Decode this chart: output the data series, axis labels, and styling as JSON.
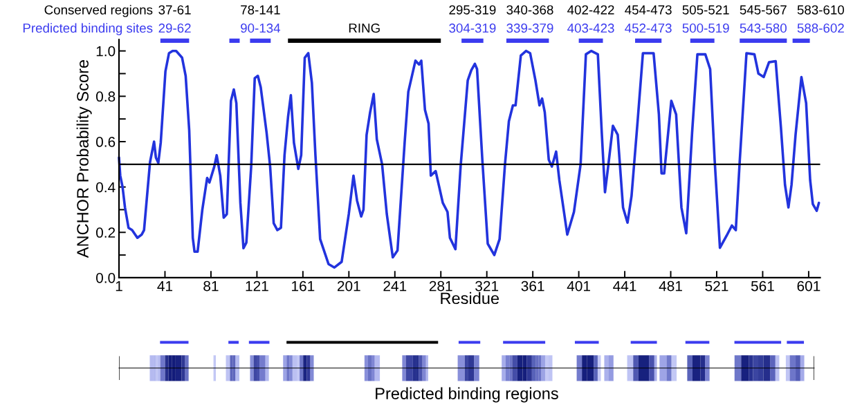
{
  "chart_data": [
    {
      "type": "line",
      "ylabel": "ANCHOR Probability Score",
      "xlabel": "Residue",
      "xlim": [
        1,
        611
      ],
      "ylim": [
        0,
        1.05
      ],
      "xticks": [
        1,
        41,
        81,
        121,
        161,
        201,
        241,
        281,
        321,
        361,
        401,
        441,
        481,
        521,
        561,
        601
      ],
      "yticks": [
        {
          "value": 0,
          "label": "0.0"
        },
        {
          "value": 0.1,
          "label": null
        },
        {
          "value": 0.2,
          "label": "0.2"
        },
        {
          "value": 0.3,
          "label": null
        },
        {
          "value": 0.4,
          "label": "0.4"
        },
        {
          "value": 0.5,
          "label": null
        },
        {
          "value": 0.6,
          "label": "0.6"
        },
        {
          "value": 0.7,
          "label": null
        },
        {
          "value": 0.8,
          "label": "0.8"
        },
        {
          "value": 0.9,
          "label": null
        },
        {
          "value": 1,
          "label": "1.0"
        }
      ],
      "marker": "none",
      "line_style": "solid",
      "ref_lines": [
        {
          "axis": "y",
          "value": 0.5,
          "label": null,
          "color": "#000000"
        }
      ],
      "annotations": [
        "Conserved regions",
        "Predicted binding sites",
        "37-61",
        "78-141",
        "295-319",
        "340-368",
        "402-422",
        "454-473",
        "505-521",
        "545-567",
        "583-610"
      ],
      "series": [
        {
          "color": "#2233dd",
          "x": [
            1,
            2.1,
            4.1,
            6.2,
            9.3,
            12.4,
            17,
            20.7,
            22.8,
            28,
            31.5,
            33.1,
            35.2,
            37.3,
            41.4,
            44.5,
            47.6,
            50.7,
            55.9,
            59,
            62.1,
            65.2,
            66.7,
            69.4,
            73.5,
            77.7,
            79.7,
            83.9,
            86,
            89.1,
            92.1,
            94.8,
            98.4,
            100.9,
            103.1,
            106.6,
            109.3,
            111.8,
            116,
            119.1,
            121.8,
            124.3,
            129.4,
            132.5,
            135.6,
            138.8,
            141.9,
            145,
            148.1,
            150.5,
            153.2,
            157,
            159.5,
            162.6,
            165.7,
            168.8,
            171.9,
            176,
            183.3,
            188.4,
            194.7,
            200.9,
            205,
            208.1,
            211.7,
            213.7,
            216.4,
            219.5,
            222.6,
            225.3,
            229.9,
            234,
            239.2,
            243.3,
            249.5,
            252.7,
            258.9,
            262,
            264,
            267.2,
            270.3,
            272.3,
            276.5,
            279.6,
            282.7,
            286.8,
            288.9,
            293.7,
            298.2,
            304.4,
            307.5,
            310.6,
            312.5,
            317.1,
            321.8,
            327.5,
            332.1,
            336.8,
            340.2,
            343.7,
            346,
            350.6,
            355.2,
            358.7,
            363.3,
            366.8,
            369.1,
            371.4,
            374.9,
            377.6,
            381.3,
            384.1,
            391,
            396.8,
            402.6,
            407.2,
            411.8,
            417.6,
            421,
            423.8,
            426.8,
            430.7,
            434.9,
            439.5,
            443.4,
            446.9,
            452.2,
            456.8,
            466.1,
            470.7,
            473,
            475.3,
            481.5,
            485.7,
            490.3,
            494.5,
            499.6,
            504.2,
            511.1,
            515.3,
            519.2,
            523.8,
            529.6,
            534.2,
            537.6,
            541.1,
            546.9,
            553.8,
            557.3,
            561.9,
            566.5,
            572.3,
            576.9,
            580.4,
            583.4,
            586.1,
            589.6,
            594.7,
            598.8,
            602.3,
            604.6,
            608,
            609.9
          ],
          "values": [
            0.53,
            0.45,
            0.4,
            0.31,
            0.22,
            0.21,
            0.176,
            0.19,
            0.21,
            0.51,
            0.6,
            0.53,
            0.506,
            0.595,
            0.91,
            0.99,
            1.0,
            1.0,
            0.97,
            0.89,
            0.65,
            0.176,
            0.115,
            0.115,
            0.3,
            0.44,
            0.42,
            0.49,
            0.54,
            0.45,
            0.265,
            0.28,
            0.78,
            0.83,
            0.77,
            0.33,
            0.13,
            0.155,
            0.49,
            0.88,
            0.89,
            0.84,
            0.64,
            0.49,
            0.24,
            0.21,
            0.22,
            0.54,
            0.71,
            0.805,
            0.595,
            0.48,
            0.54,
            0.97,
            0.99,
            0.86,
            0.54,
            0.17,
            0.06,
            0.045,
            0.07,
            0.28,
            0.45,
            0.34,
            0.27,
            0.3,
            0.63,
            0.73,
            0.81,
            0.61,
            0.5,
            0.28,
            0.09,
            0.12,
            0.595,
            0.82,
            0.957,
            0.94,
            0.957,
            0.74,
            0.68,
            0.45,
            0.47,
            0.4,
            0.33,
            0.29,
            0.176,
            0.126,
            0.49,
            0.87,
            0.915,
            0.943,
            0.92,
            0.52,
            0.15,
            0.1,
            0.17,
            0.5,
            0.69,
            0.76,
            0.76,
            0.98,
            1.0,
            0.99,
            0.87,
            0.76,
            0.79,
            0.73,
            0.52,
            0.49,
            0.556,
            0.43,
            0.19,
            0.29,
            0.5,
            0.985,
            1.0,
            0.985,
            0.64,
            0.377,
            0.5,
            0.67,
            0.63,
            0.31,
            0.243,
            0.36,
            0.69,
            0.99,
            0.99,
            0.72,
            0.46,
            0.46,
            0.78,
            0.72,
            0.31,
            0.196,
            0.64,
            0.985,
            0.985,
            0.92,
            0.52,
            0.132,
            0.185,
            0.23,
            0.21,
            0.52,
            0.99,
            0.985,
            0.9,
            0.885,
            0.95,
            0.955,
            0.66,
            0.41,
            0.31,
            0.41,
            0.63,
            0.885,
            0.77,
            0.43,
            0.325,
            0.295,
            0.33
          ]
        },
        {
          "name": "29-62",
          "color": "#3b3bef",
          "x": [
            37,
            62
          ],
          "values": [
            1.045,
            1.045
          ]
        },
        {
          "color": "#3b3bef",
          "x": [
            97,
            106
          ],
          "values": [
            1.045,
            1.045
          ]
        },
        {
          "name": "90-134",
          "color": "#3b3bef",
          "x": [
            115,
            133
          ],
          "values": [
            1.045,
            1.045
          ]
        },
        {
          "name": "RING",
          "color": "#000000",
          "x": [
            148,
            281
          ],
          "values": [
            1.045,
            1.045
          ]
        },
        {
          "name": "304-319",
          "color": "#3b3bef",
          "x": [
            299,
            318
          ],
          "values": [
            1.045,
            1.045
          ]
        },
        {
          "name": "339-379",
          "color": "#3b3bef",
          "x": [
            338,
            375
          ],
          "values": [
            1.045,
            1.045
          ]
        },
        {
          "name": "403-423",
          "color": "#3b3bef",
          "x": [
            401,
            422
          ],
          "values": [
            1.045,
            1.045
          ]
        },
        {
          "name": "452-473",
          "color": "#3b3bef",
          "x": [
            450,
            473
          ],
          "values": [
            1.045,
            1.045
          ]
        },
        {
          "name": "500-519",
          "color": "#3b3bef",
          "x": [
            498,
            519
          ],
          "values": [
            1.045,
            1.045
          ]
        },
        {
          "name": "543-580",
          "color": "#3b3bef",
          "x": [
            541,
            582
          ],
          "values": [
            1.045,
            1.045
          ]
        },
        {
          "name": "588-602",
          "color": "#3b3bef",
          "x": [
            587,
            602
          ],
          "values": [
            1.045,
            1.045
          ]
        }
      ]
    },
    {
      "type": "other",
      "xlabel": "Predicted binding regions"
    }
  ]
}
